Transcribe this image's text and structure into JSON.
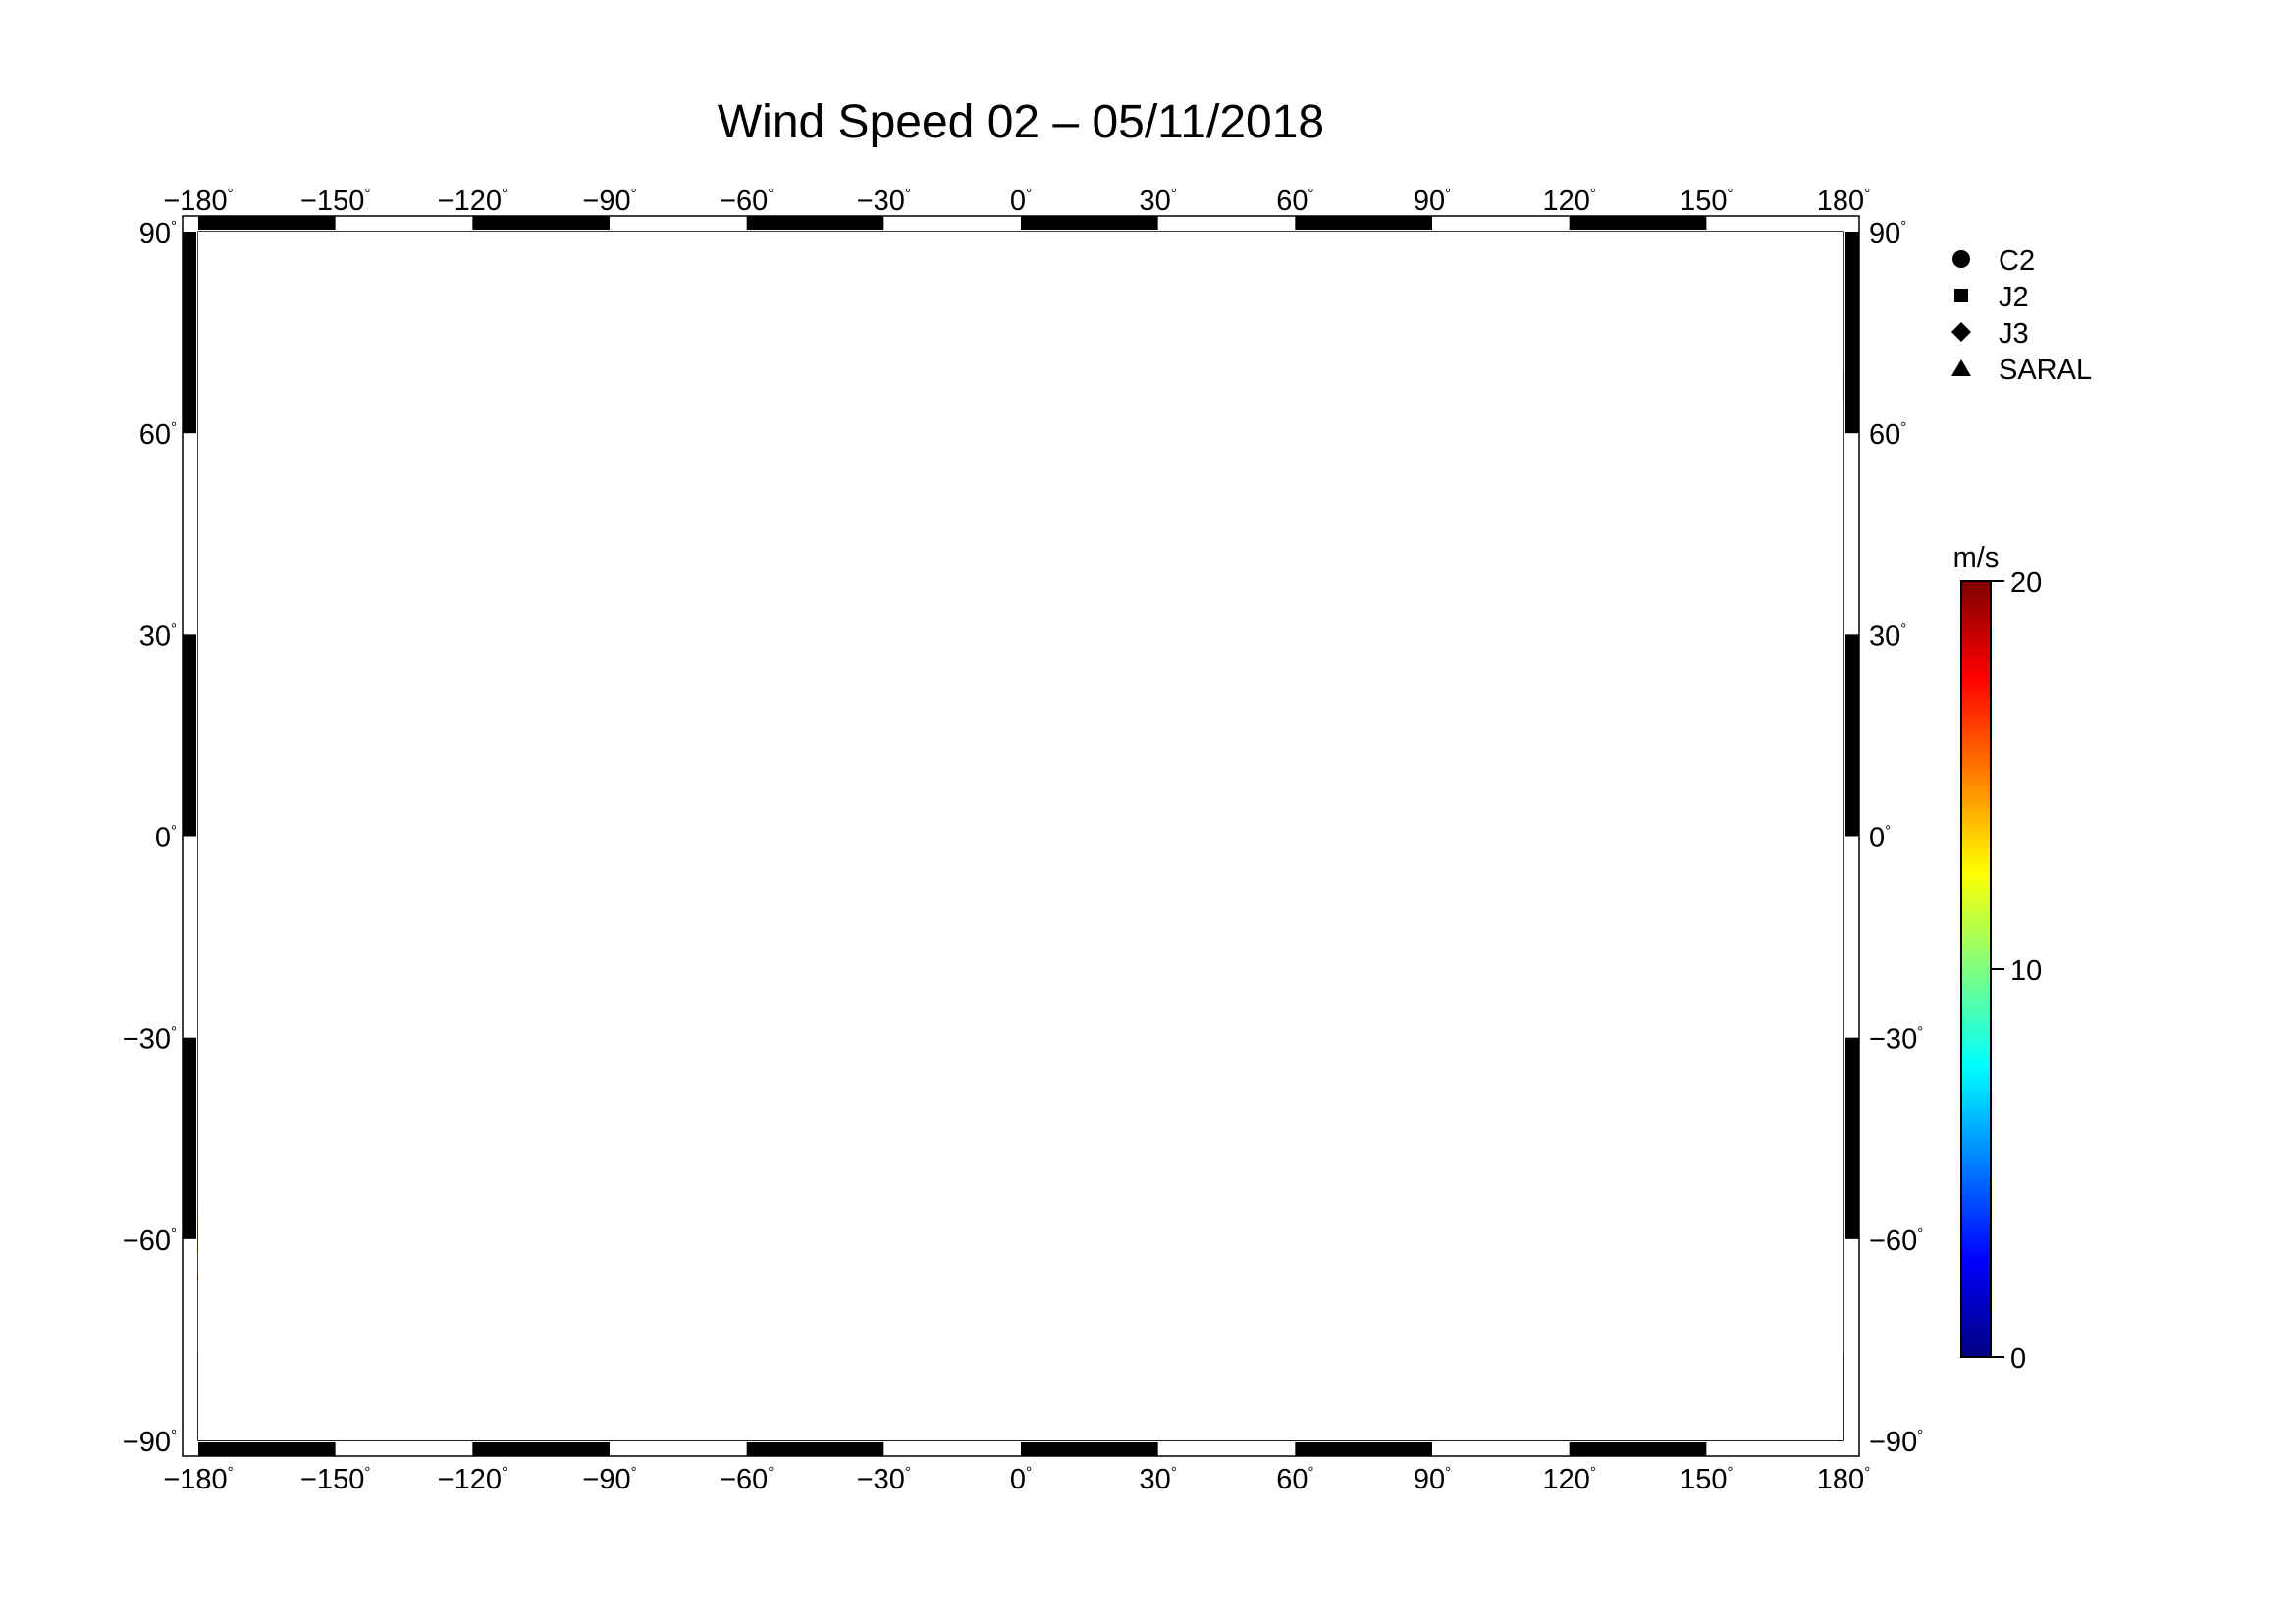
{
  "title": "Wind Speed 02 – 05/11/2018",
  "map": {
    "lon_range": [
      -180,
      180
    ],
    "lat_range": [
      -90,
      90
    ],
    "grid_step_lon": 30,
    "grid_step_lat": 30,
    "lon_tick_labels": [
      "−180",
      "−150",
      "−120",
      "−90",
      "−60",
      "−30",
      "0",
      "30",
      "60",
      "90",
      "120",
      "150",
      "180"
    ],
    "lat_tick_labels": [
      "−90",
      "−60",
      "−30",
      "0",
      "30",
      "60",
      "90"
    ],
    "degree_symbol": "°",
    "land_color": "#bebebe",
    "ocean_color": "#ffffff"
  },
  "legend": {
    "items": [
      {
        "label": "C2",
        "icon": "circle-icon"
      },
      {
        "label": "J2",
        "icon": "square-icon"
      },
      {
        "label": "J3",
        "icon": "diamond-icon"
      },
      {
        "label": "SARAL",
        "icon": "triangle-icon"
      }
    ]
  },
  "colorbar": {
    "unit": "m/s",
    "min": 0,
    "max": 20,
    "tick_labels": [
      "20",
      "10",
      "0"
    ],
    "tick_values": [
      20,
      10,
      0
    ],
    "colors": [
      "#00007f",
      "#0000ff",
      "#007fff",
      "#00ffff",
      "#7fff7f",
      "#ffff00",
      "#ff7f00",
      "#ff0000",
      "#7f0000"
    ]
  }
}
